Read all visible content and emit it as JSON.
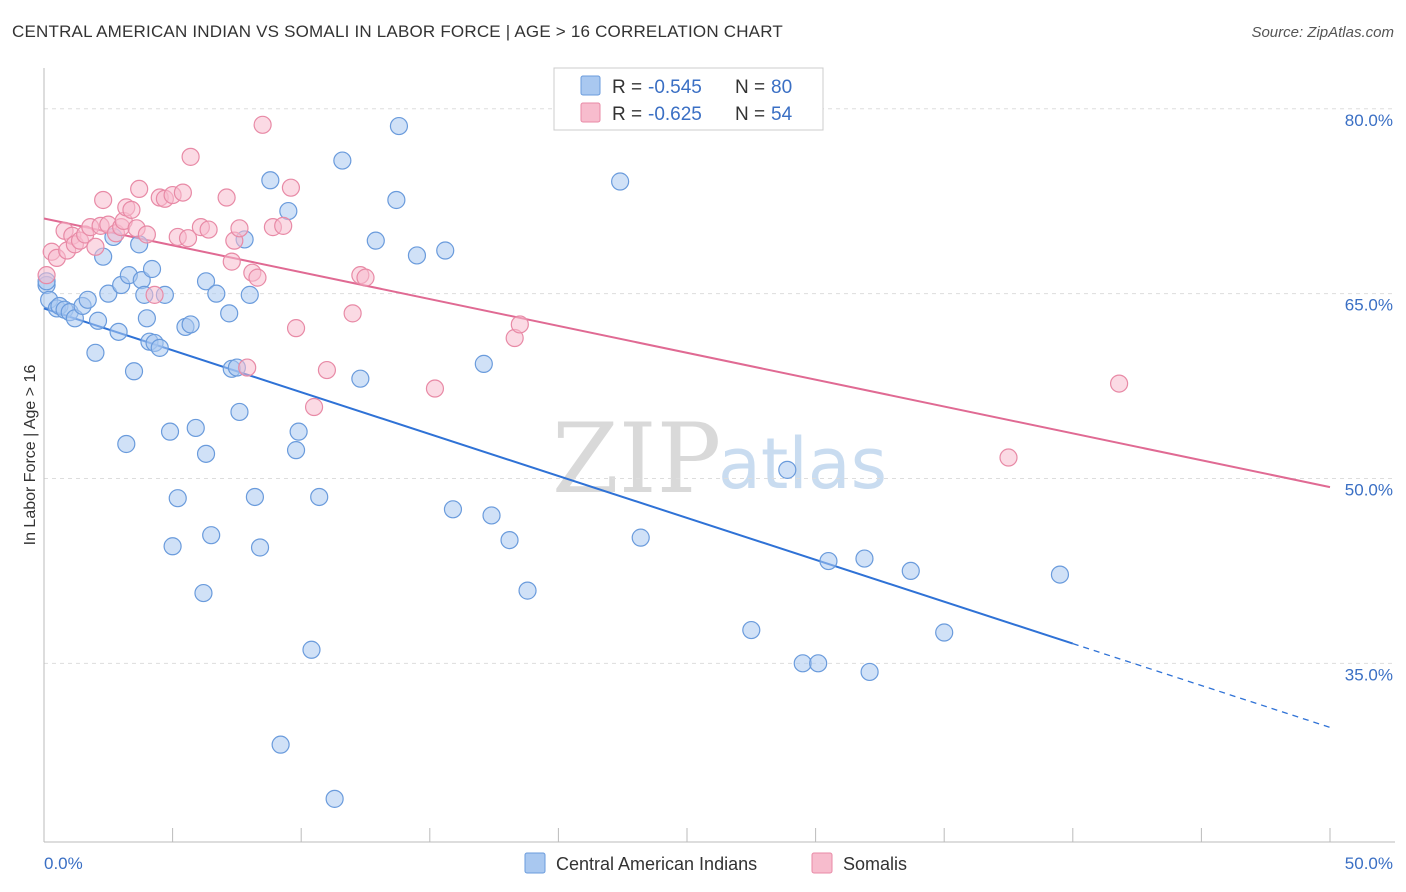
{
  "title": "CENTRAL AMERICAN INDIAN VS SOMALI IN LABOR FORCE | AGE > 16 CORRELATION CHART",
  "source": "Source: ZipAtlas.com",
  "watermark": {
    "zip": "ZIP",
    "atlas": "atlas"
  },
  "legend": {
    "r_label": "R =",
    "n_label": "N =",
    "series": [
      {
        "r": "-0.545",
        "n": "80",
        "color": "#a9c8f0",
        "stroke": "#6a9bdc"
      },
      {
        "r": "-0.625",
        "n": "54",
        "color": "#f7bccd",
        "stroke": "#e88aa6"
      }
    ]
  },
  "bottom_legend": [
    "Central American Indians",
    "Somalis"
  ],
  "chart_data": {
    "type": "scatter",
    "xlabel": "",
    "ylabel": "In Labor Force | Age > 16",
    "xlim": [
      0,
      50
    ],
    "ylim": [
      20.5,
      82.5
    ],
    "x_tick_labels": [
      "0.0%",
      "50.0%"
    ],
    "y_ticks": [
      35,
      50,
      65,
      80
    ],
    "y_tick_labels": [
      "35.0%",
      "50.0%",
      "65.0%",
      "80.0%"
    ],
    "series": [
      {
        "name": "Central American Indians",
        "color": "#a9c8f0",
        "stroke": "#6a9bdc",
        "trend_color": "#2f72d6",
        "trend": {
          "x0": 0,
          "y0": 63.8,
          "x1": 40,
          "y1": 36.6,
          "dash_to_x": 50,
          "dash_to_y": 29.8
        },
        "points": [
          [
            0.1,
            65.7
          ],
          [
            0.1,
            66.0
          ],
          [
            0.2,
            64.5
          ],
          [
            0.5,
            63.8
          ],
          [
            0.6,
            64.0
          ],
          [
            0.8,
            63.7
          ],
          [
            1.0,
            63.5
          ],
          [
            1.2,
            63.0
          ],
          [
            1.5,
            64.0
          ],
          [
            1.7,
            64.5
          ],
          [
            2.0,
            60.2
          ],
          [
            2.1,
            62.8
          ],
          [
            2.3,
            68.0
          ],
          [
            2.5,
            65.0
          ],
          [
            2.7,
            69.6
          ],
          [
            2.9,
            61.9
          ],
          [
            3.0,
            65.7
          ],
          [
            3.2,
            52.8
          ],
          [
            3.3,
            66.5
          ],
          [
            3.5,
            58.7
          ],
          [
            3.7,
            69.0
          ],
          [
            3.8,
            66.1
          ],
          [
            3.9,
            64.9
          ],
          [
            4.0,
            63.0
          ],
          [
            4.1,
            61.1
          ],
          [
            4.2,
            67.0
          ],
          [
            4.3,
            61.0
          ],
          [
            4.5,
            60.6
          ],
          [
            4.7,
            64.9
          ],
          [
            4.9,
            53.8
          ],
          [
            5.0,
            44.5
          ],
          [
            5.2,
            48.4
          ],
          [
            5.5,
            62.3
          ],
          [
            5.7,
            62.5
          ],
          [
            5.9,
            54.1
          ],
          [
            6.3,
            52.0
          ],
          [
            6.3,
            66.0
          ],
          [
            6.5,
            45.4
          ],
          [
            6.7,
            65.0
          ],
          [
            6.2,
            40.7
          ],
          [
            7.2,
            63.4
          ],
          [
            7.3,
            58.9
          ],
          [
            7.5,
            59.0
          ],
          [
            7.6,
            55.4
          ],
          [
            7.8,
            69.4
          ],
          [
            8.0,
            64.9
          ],
          [
            8.2,
            48.5
          ],
          [
            8.4,
            44.4
          ],
          [
            8.8,
            74.2
          ],
          [
            9.2,
            28.4
          ],
          [
            9.5,
            71.7
          ],
          [
            9.8,
            52.3
          ],
          [
            9.9,
            53.8
          ],
          [
            10.4,
            36.1
          ],
          [
            10.7,
            48.5
          ],
          [
            11.3,
            24.0
          ],
          [
            11.6,
            75.8
          ],
          [
            12.3,
            58.1
          ],
          [
            12.9,
            69.3
          ],
          [
            13.7,
            72.6
          ],
          [
            13.8,
            78.6
          ],
          [
            14.5,
            68.1
          ],
          [
            15.6,
            68.5
          ],
          [
            15.9,
            47.5
          ],
          [
            17.1,
            59.3
          ],
          [
            17.4,
            47.0
          ],
          [
            18.1,
            45.0
          ],
          [
            18.8,
            40.9
          ],
          [
            22.4,
            74.1
          ],
          [
            23.2,
            45.2
          ],
          [
            27.5,
            37.7
          ],
          [
            28.9,
            50.7
          ],
          [
            29.5,
            35.0
          ],
          [
            30.1,
            35.0
          ],
          [
            30.5,
            43.3
          ],
          [
            31.9,
            43.5
          ],
          [
            32.1,
            34.3
          ],
          [
            33.7,
            42.5
          ],
          [
            35.0,
            37.5
          ],
          [
            39.5,
            42.2
          ]
        ]
      },
      {
        "name": "Somalis",
        "color": "#f7bccd",
        "stroke": "#e88aa6",
        "trend_color": "#e06a93",
        "trend": {
          "x0": 0,
          "y0": 71.1,
          "x1": 50,
          "y1": 49.3
        },
        "points": [
          [
            0.1,
            66.5
          ],
          [
            0.3,
            68.4
          ],
          [
            0.5,
            67.9
          ],
          [
            0.8,
            70.1
          ],
          [
            0.9,
            68.5
          ],
          [
            1.1,
            69.7
          ],
          [
            1.2,
            69.0
          ],
          [
            1.4,
            69.3
          ],
          [
            1.6,
            69.8
          ],
          [
            1.8,
            70.4
          ],
          [
            2.0,
            68.8
          ],
          [
            2.2,
            70.5
          ],
          [
            2.3,
            72.6
          ],
          [
            2.5,
            70.6
          ],
          [
            2.8,
            69.9
          ],
          [
            3.0,
            70.4
          ],
          [
            3.1,
            70.9
          ],
          [
            3.2,
            72.0
          ],
          [
            3.4,
            71.8
          ],
          [
            3.6,
            70.3
          ],
          [
            3.7,
            73.5
          ],
          [
            4.0,
            69.8
          ],
          [
            4.3,
            64.9
          ],
          [
            4.5,
            72.8
          ],
          [
            4.7,
            72.7
          ],
          [
            5.0,
            73.0
          ],
          [
            5.2,
            69.6
          ],
          [
            5.4,
            73.2
          ],
          [
            5.6,
            69.5
          ],
          [
            5.7,
            76.1
          ],
          [
            6.1,
            70.4
          ],
          [
            6.4,
            70.2
          ],
          [
            7.1,
            72.8
          ],
          [
            7.3,
            67.6
          ],
          [
            7.4,
            69.3
          ],
          [
            7.6,
            70.3
          ],
          [
            7.9,
            59.0
          ],
          [
            8.1,
            66.7
          ],
          [
            8.3,
            66.3
          ],
          [
            8.5,
            78.7
          ],
          [
            8.9,
            70.4
          ],
          [
            9.3,
            70.5
          ],
          [
            9.6,
            73.6
          ],
          [
            9.8,
            62.2
          ],
          [
            10.5,
            55.8
          ],
          [
            11.0,
            58.8
          ],
          [
            12.0,
            63.4
          ],
          [
            12.3,
            66.5
          ],
          [
            12.5,
            66.3
          ],
          [
            15.2,
            57.3
          ],
          [
            18.3,
            61.4
          ],
          [
            18.5,
            62.5
          ],
          [
            37.5,
            51.7
          ],
          [
            41.8,
            57.7
          ]
        ]
      }
    ]
  }
}
